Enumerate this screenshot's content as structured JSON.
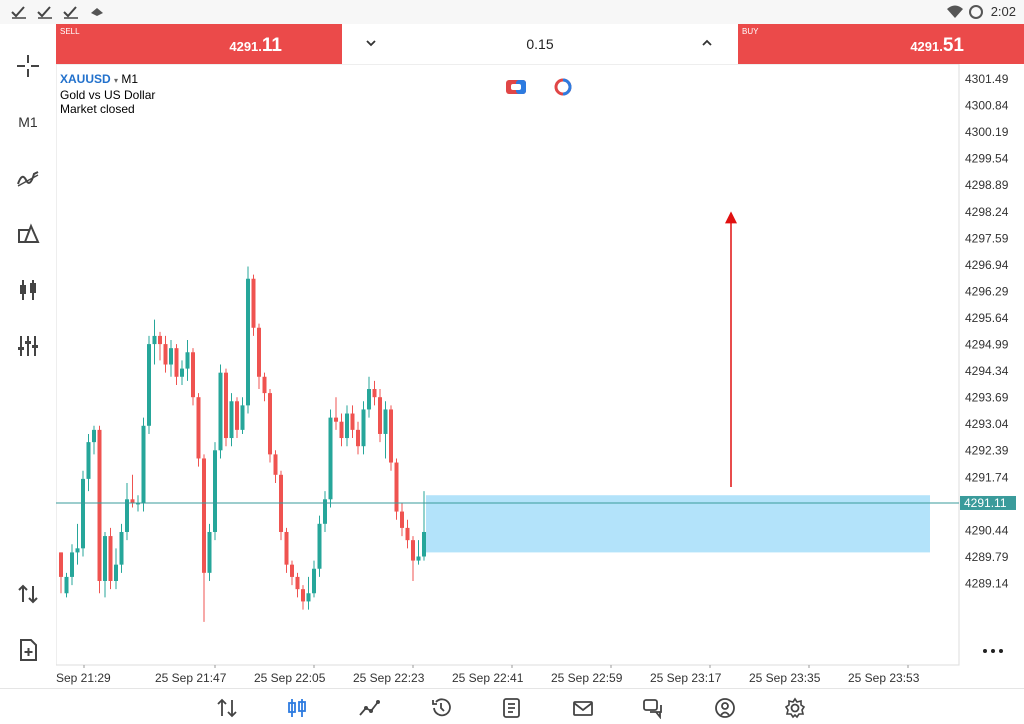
{
  "status": {
    "time": "2:02"
  },
  "sidebar": {
    "timeframe_label": "M1"
  },
  "trade": {
    "sell_label": "SELL",
    "sell_price_prefix": "4291.",
    "sell_price_suffix": "11",
    "buy_label": "BUY",
    "buy_price_prefix": "4291.",
    "buy_price_suffix": "51",
    "volume": "0.15"
  },
  "symbol": {
    "ticker": "XAUUSD",
    "timeframe": "M1",
    "description": "Gold vs US Dollar",
    "market_status": "Market closed"
  },
  "chart_data": {
    "type": "candlestick",
    "y_ticks": [
      "4301.49",
      "4300.84",
      "4300.19",
      "4299.54",
      "4298.89",
      "4298.24",
      "4297.59",
      "4296.94",
      "4296.29",
      "4295.64",
      "4294.99",
      "4294.34",
      "4293.69",
      "4293.04",
      "4292.39",
      "4291.74",
      "4290.44",
      "4289.79",
      "4289.14"
    ],
    "current_price": "4291.11",
    "x_ticks": [
      "Sep 21:29",
      "25 Sep 21:47",
      "25 Sep 22:05",
      "25 Sep 22:23",
      "25 Sep 22:41",
      "25 Sep 22:59",
      "25 Sep 23:17",
      "25 Sep 23:35",
      "25 Sep 23:53"
    ],
    "bull_color": "#26a69a",
    "bear_color": "#ef5350",
    "candles": [
      [
        4289.9,
        4289.3,
        4289.9,
        4288.9
      ],
      [
        4288.9,
        4289.3,
        4289.4,
        4288.8
      ],
      [
        4289.3,
        4289.9,
        4290.1,
        4289.1
      ],
      [
        4289.9,
        4290.0,
        4290.6,
        4289.6
      ],
      [
        4290.0,
        4291.7,
        4291.9,
        4289.8
      ],
      [
        4291.7,
        4292.6,
        4292.8,
        4291.4
      ],
      [
        4292.6,
        4292.9,
        4293.0,
        4292.3
      ],
      [
        4292.9,
        4289.2,
        4293.0,
        4288.9
      ],
      [
        4289.2,
        4290.3,
        4290.4,
        4288.8
      ],
      [
        4290.3,
        4289.2,
        4290.5,
        4289.0
      ],
      [
        4289.2,
        4289.6,
        4290.0,
        4289.0
      ],
      [
        4289.6,
        4290.4,
        4290.6,
        4289.4
      ],
      [
        4290.4,
        4291.2,
        4291.6,
        4290.2
      ],
      [
        4291.2,
        4291.1,
        4291.8,
        4291.0
      ],
      [
        4291.1,
        4291.1,
        4291.3,
        4290.9
      ],
      [
        4291.1,
        4293.0,
        4293.2,
        4290.9
      ],
      [
        4293.0,
        4295.0,
        4295.2,
        4292.8
      ],
      [
        4295.0,
        4295.2,
        4295.6,
        4294.5
      ],
      [
        4295.2,
        4295.0,
        4295.3,
        4294.6
      ],
      [
        4295.0,
        4294.5,
        4295.2,
        4294.3
      ],
      [
        4294.5,
        4294.9,
        4295.1,
        4294.2
      ],
      [
        4294.9,
        4294.2,
        4295.0,
        4294.0
      ],
      [
        4294.2,
        4294.4,
        4294.6,
        4294.0
      ],
      [
        4294.4,
        4294.8,
        4295.1,
        4294.1
      ],
      [
        4294.8,
        4293.7,
        4294.9,
        4293.5
      ],
      [
        4293.7,
        4292.2,
        4293.8,
        4292.0
      ],
      [
        4292.2,
        4289.4,
        4292.3,
        4288.2
      ],
      [
        4289.4,
        4290.4,
        4290.6,
        4289.2
      ],
      [
        4290.4,
        4292.4,
        4292.6,
        4290.2
      ],
      [
        4292.4,
        4294.3,
        4294.5,
        4292.2
      ],
      [
        4294.3,
        4292.7,
        4294.4,
        4292.5
      ],
      [
        4292.7,
        4293.6,
        4293.8,
        4292.5
      ],
      [
        4293.6,
        4292.9,
        4293.7,
        4292.7
      ],
      [
        4292.9,
        4293.5,
        4293.7,
        4292.8
      ],
      [
        4293.5,
        4296.6,
        4296.9,
        4293.3
      ],
      [
        4296.6,
        4295.4,
        4296.7,
        4295.2
      ],
      [
        4295.4,
        4294.2,
        4295.5,
        4293.9
      ],
      [
        4294.2,
        4293.8,
        4294.3,
        4293.6
      ],
      [
        4293.8,
        4292.3,
        4293.9,
        4292.1
      ],
      [
        4292.3,
        4291.8,
        4292.4,
        4291.6
      ],
      [
        4291.8,
        4290.4,
        4291.9,
        4290.2
      ],
      [
        4290.4,
        4289.6,
        4290.5,
        4289.4
      ],
      [
        4289.6,
        4289.3,
        4289.7,
        4289.1
      ],
      [
        4289.3,
        4289.0,
        4289.4,
        4288.8
      ],
      [
        4289.0,
        4288.7,
        4289.1,
        4288.5
      ],
      [
        4288.7,
        4288.9,
        4289.3,
        4288.5
      ],
      [
        4288.9,
        4289.5,
        4289.7,
        4288.8
      ],
      [
        4289.5,
        4290.6,
        4290.8,
        4289.3
      ],
      [
        4290.6,
        4291.2,
        4291.4,
        4290.4
      ],
      [
        4291.2,
        4293.2,
        4293.4,
        4291.0
      ],
      [
        4293.2,
        4293.1,
        4293.7,
        4292.9
      ],
      [
        4293.1,
        4292.7,
        4293.3,
        4292.5
      ],
      [
        4292.7,
        4293.3,
        4293.5,
        4292.5
      ],
      [
        4293.3,
        4292.9,
        4293.5,
        4292.7
      ],
      [
        4292.9,
        4292.5,
        4293.1,
        4292.3
      ],
      [
        4292.5,
        4293.4,
        4293.6,
        4292.3
      ],
      [
        4293.4,
        4293.9,
        4294.2,
        4293.2
      ],
      [
        4293.9,
        4293.7,
        4294.1,
        4293.5
      ],
      [
        4293.7,
        4292.8,
        4293.9,
        4292.6
      ],
      [
        4292.8,
        4293.4,
        4293.6,
        4292.2
      ],
      [
        4293.4,
        4292.1,
        4293.5,
        4291.9
      ],
      [
        4292.1,
        4290.9,
        4292.2,
        4290.7
      ],
      [
        4290.9,
        4290.5,
        4291.1,
        4290.3
      ],
      [
        4290.5,
        4290.2,
        4290.7,
        4290.0
      ],
      [
        4290.2,
        4289.7,
        4290.3,
        4289.2
      ],
      [
        4289.7,
        4289.8,
        4290.2,
        4289.6
      ],
      [
        4289.8,
        4290.4,
        4291.4,
        4289.7
      ]
    ],
    "horizontal_line": 4291.11,
    "box_top": 4291.3,
    "box_bottom": 4289.9,
    "arrow_bottom": 4291.5,
    "arrow_top": 4298.2
  }
}
